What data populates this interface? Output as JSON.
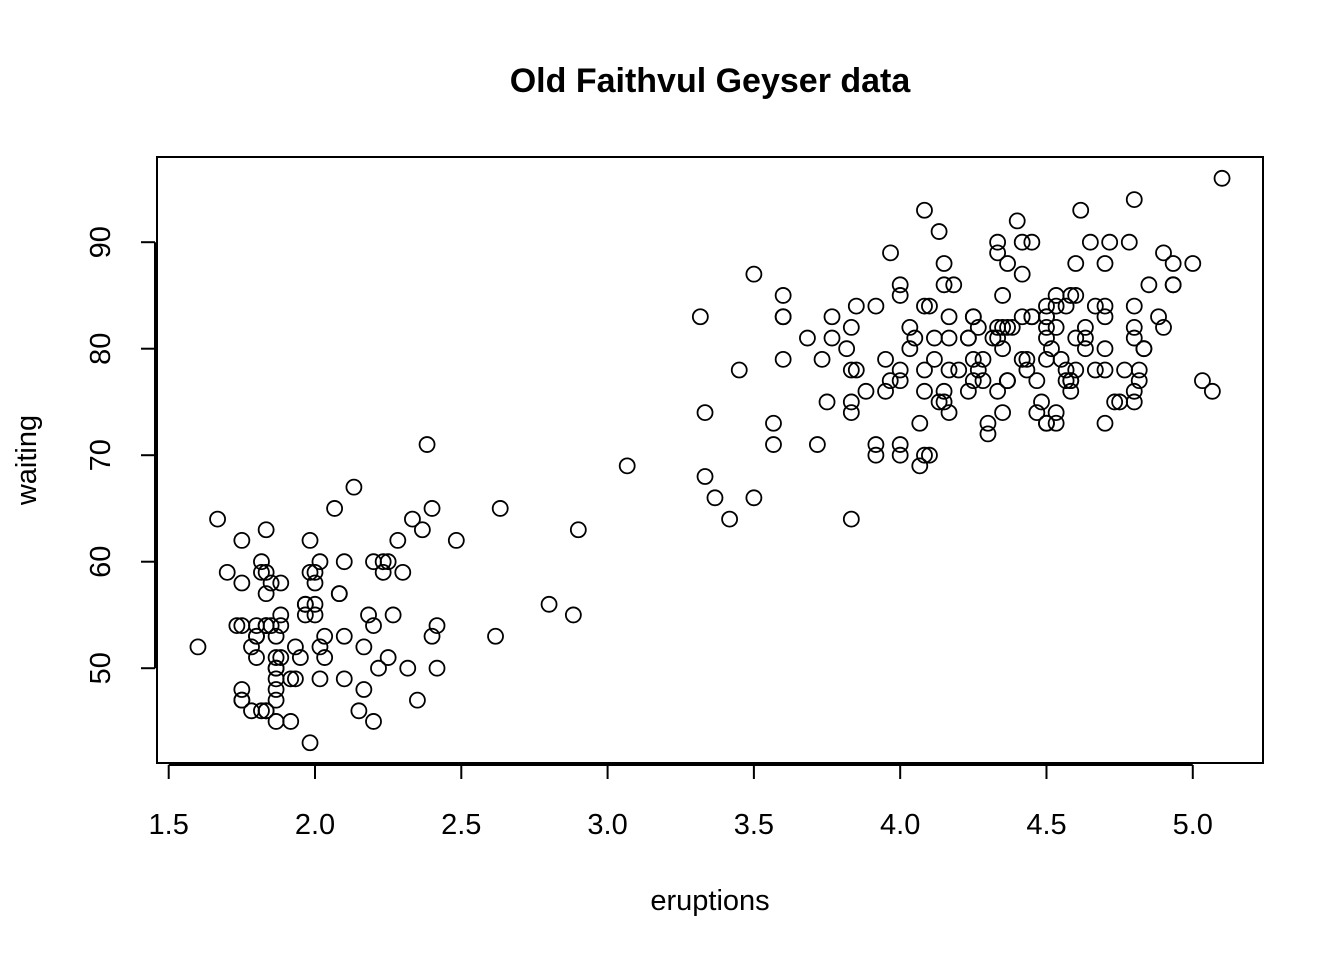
{
  "chart_data": {
    "type": "scatter",
    "title": "Old Faithvul Geyser data",
    "xlabel": "eruptions",
    "ylabel": "waiting",
    "xticks": [
      1.5,
      2.0,
      2.5,
      3.0,
      3.5,
      4.0,
      4.5,
      5.0
    ],
    "xtick_labels": [
      "1.5",
      "2.0",
      "2.5",
      "3.0",
      "3.5",
      "4.0",
      "4.5",
      "5.0"
    ],
    "yticks": [
      50,
      60,
      70,
      80,
      90
    ],
    "ytick_labels": [
      "50",
      "60",
      "70",
      "80",
      "90"
    ],
    "xlim": [
      1.46,
      5.24
    ],
    "ylim": [
      41.1,
      98.0
    ],
    "grid": false,
    "legend": "none",
    "marker": "open-circle",
    "color": "#000000",
    "points": [
      [
        3.6,
        79
      ],
      [
        1.8,
        54
      ],
      [
        3.333,
        74
      ],
      [
        2.283,
        62
      ],
      [
        4.533,
        85
      ],
      [
        2.883,
        55
      ],
      [
        4.7,
        88
      ],
      [
        3.6,
        85
      ],
      [
        1.95,
        51
      ],
      [
        4.35,
        85
      ],
      [
        1.833,
        54
      ],
      [
        3.917,
        84
      ],
      [
        4.2,
        78
      ],
      [
        1.75,
        47
      ],
      [
        4.7,
        83
      ],
      [
        2.167,
        52
      ],
      [
        1.75,
        62
      ],
      [
        4.8,
        84
      ],
      [
        1.6,
        52
      ],
      [
        4.25,
        79
      ],
      [
        1.8,
        51
      ],
      [
        1.75,
        47
      ],
      [
        3.45,
        78
      ],
      [
        3.067,
        69
      ],
      [
        4.533,
        74
      ],
      [
        3.6,
        83
      ],
      [
        1.967,
        55
      ],
      [
        4.083,
        76
      ],
      [
        3.85,
        78
      ],
      [
        4.433,
        79
      ],
      [
        4.3,
        73
      ],
      [
        4.467,
        77
      ],
      [
        3.367,
        66
      ],
      [
        4.033,
        80
      ],
      [
        3.833,
        74
      ],
      [
        2.017,
        52
      ],
      [
        1.867,
        48
      ],
      [
        4.833,
        80
      ],
      [
        1.833,
        59
      ],
      [
        4.783,
        90
      ],
      [
        4.35,
        80
      ],
      [
        1.883,
        58
      ],
      [
        4.567,
        84
      ],
      [
        1.75,
        58
      ],
      [
        4.533,
        73
      ],
      [
        3.317,
        83
      ],
      [
        3.833,
        64
      ],
      [
        2.1,
        53
      ],
      [
        4.633,
        82
      ],
      [
        2.0,
        59
      ],
      [
        4.8,
        75
      ],
      [
        4.716,
        90
      ],
      [
        1.833,
        54
      ],
      [
        4.833,
        80
      ],
      [
        1.733,
        54
      ],
      [
        4.883,
        83
      ],
      [
        3.717,
        71
      ],
      [
        1.667,
        64
      ],
      [
        4.567,
        77
      ],
      [
        4.317,
        81
      ],
      [
        2.233,
        59
      ],
      [
        4.5,
        84
      ],
      [
        1.75,
        48
      ],
      [
        4.8,
        82
      ],
      [
        1.817,
        60
      ],
      [
        4.4,
        92
      ],
      [
        4.167,
        78
      ],
      [
        4.7,
        78
      ],
      [
        2.067,
        65
      ],
      [
        4.7,
        73
      ],
      [
        4.033,
        82
      ],
      [
        1.967,
        56
      ],
      [
        4.5,
        79
      ],
      [
        4.0,
        71
      ],
      [
        1.983,
        62
      ],
      [
        5.067,
        76
      ],
      [
        2.017,
        60
      ],
      [
        4.567,
        78
      ],
      [
        3.883,
        76
      ],
      [
        3.6,
        83
      ],
      [
        4.133,
        75
      ],
      [
        4.333,
        82
      ],
      [
        4.1,
        70
      ],
      [
        2.633,
        65
      ],
      [
        4.067,
        73
      ],
      [
        4.933,
        88
      ],
      [
        3.95,
        76
      ],
      [
        4.517,
        80
      ],
      [
        2.167,
        48
      ],
      [
        4.0,
        86
      ],
      [
        2.2,
        60
      ],
      [
        4.333,
        90
      ],
      [
        1.867,
        50
      ],
      [
        4.817,
        78
      ],
      [
        1.833,
        63
      ],
      [
        4.3,
        72
      ],
      [
        4.667,
        84
      ],
      [
        3.75,
        75
      ],
      [
        1.867,
        51
      ],
      [
        4.9,
        82
      ],
      [
        2.483,
        62
      ],
      [
        4.367,
        88
      ],
      [
        2.1,
        49
      ],
      [
        4.5,
        83
      ],
      [
        4.05,
        81
      ],
      [
        1.867,
        47
      ],
      [
        4.7,
        84
      ],
      [
        1.783,
        52
      ],
      [
        4.85,
        86
      ],
      [
        3.683,
        81
      ],
      [
        4.733,
        75
      ],
      [
        2.3,
        59
      ],
      [
        4.9,
        89
      ],
      [
        4.417,
        79
      ],
      [
        1.7,
        59
      ],
      [
        4.633,
        81
      ],
      [
        2.317,
        50
      ],
      [
        4.6,
        85
      ],
      [
        1.817,
        59
      ],
      [
        4.417,
        87
      ],
      [
        2.617,
        53
      ],
      [
        4.067,
        69
      ],
      [
        4.25,
        77
      ],
      [
        1.967,
        56
      ],
      [
        4.6,
        88
      ],
      [
        3.767,
        81
      ],
      [
        1.917,
        45
      ],
      [
        4.5,
        82
      ],
      [
        2.267,
        55
      ],
      [
        4.65,
        90
      ],
      [
        1.867,
        45
      ],
      [
        4.167,
        83
      ],
      [
        2.8,
        56
      ],
      [
        4.333,
        89
      ],
      [
        1.833,
        46
      ],
      [
        4.383,
        82
      ],
      [
        1.883,
        51
      ],
      [
        4.933,
        86
      ],
      [
        2.033,
        53
      ],
      [
        3.733,
        79
      ],
      [
        4.233,
        81
      ],
      [
        2.233,
        60
      ],
      [
        4.533,
        82
      ],
      [
        4.817,
        77
      ],
      [
        4.333,
        76
      ],
      [
        1.983,
        59
      ],
      [
        4.633,
        80
      ],
      [
        2.017,
        49
      ],
      [
        5.1,
        96
      ],
      [
        1.8,
        53
      ],
      [
        5.033,
        77
      ],
      [
        4.0,
        77
      ],
      [
        2.4,
        65
      ],
      [
        4.6,
        81
      ],
      [
        3.567,
        71
      ],
      [
        4.0,
        70
      ],
      [
        4.5,
        81
      ],
      [
        4.083,
        93
      ],
      [
        1.8,
        53
      ],
      [
        3.967,
        89
      ],
      [
        2.2,
        45
      ],
      [
        4.15,
        86
      ],
      [
        2.0,
        58
      ],
      [
        3.833,
        78
      ],
      [
        3.5,
        66
      ],
      [
        4.583,
        76
      ],
      [
        2.367,
        63
      ],
      [
        5.0,
        88
      ],
      [
        1.933,
        52
      ],
      [
        4.617,
        93
      ],
      [
        1.917,
        49
      ],
      [
        2.083,
        57
      ],
      [
        4.583,
        77
      ],
      [
        3.333,
        68
      ],
      [
        4.167,
        81
      ],
      [
        4.333,
        81
      ],
      [
        4.5,
        73
      ],
      [
        2.417,
        50
      ],
      [
        4.0,
        85
      ],
      [
        4.167,
        74
      ],
      [
        1.883,
        55
      ],
      [
        4.583,
        77
      ],
      [
        4.25,
        83
      ],
      [
        3.767,
        83
      ],
      [
        2.033,
        51
      ],
      [
        4.433,
        78
      ],
      [
        4.083,
        84
      ],
      [
        1.833,
        46
      ],
      [
        4.417,
        83
      ],
      [
        2.183,
        55
      ],
      [
        4.8,
        81
      ],
      [
        1.833,
        57
      ],
      [
        4.8,
        76
      ],
      [
        4.1,
        84
      ],
      [
        3.966,
        77
      ],
      [
        4.233,
        81
      ],
      [
        3.5,
        87
      ],
      [
        4.366,
        77
      ],
      [
        2.25,
        51
      ],
      [
        4.667,
        78
      ],
      [
        2.1,
        60
      ],
      [
        4.35,
        82
      ],
      [
        4.133,
        91
      ],
      [
        1.867,
        53
      ],
      [
        4.6,
        78
      ],
      [
        1.783,
        46
      ],
      [
        4.367,
        77
      ],
      [
        3.85,
        84
      ],
      [
        1.933,
        49
      ],
      [
        4.5,
        83
      ],
      [
        2.383,
        71
      ],
      [
        4.7,
        80
      ],
      [
        1.867,
        49
      ],
      [
        3.833,
        75
      ],
      [
        3.417,
        64
      ],
      [
        4.233,
        76
      ],
      [
        2.4,
        53
      ],
      [
        4.8,
        94
      ],
      [
        2.0,
        55
      ],
      [
        4.15,
        76
      ],
      [
        1.867,
        50
      ],
      [
        4.267,
        82
      ],
      [
        1.75,
        54
      ],
      [
        4.483,
        75
      ],
      [
        4.0,
        78
      ],
      [
        4.117,
        79
      ],
      [
        4.083,
        78
      ],
      [
        4.267,
        78
      ],
      [
        3.917,
        70
      ],
      [
        4.55,
        79
      ],
      [
        4.083,
        70
      ],
      [
        2.417,
        54
      ],
      [
        4.183,
        86
      ],
      [
        2.217,
        50
      ],
      [
        4.45,
        90
      ],
      [
        1.883,
        54
      ],
      [
        1.85,
        54
      ],
      [
        4.283,
        77
      ],
      [
        3.95,
        79
      ],
      [
        2.333,
        64
      ],
      [
        4.15,
        75
      ],
      [
        2.35,
        47
      ],
      [
        4.933,
        86
      ],
      [
        2.9,
        63
      ],
      [
        4.583,
        85
      ],
      [
        3.833,
        82
      ],
      [
        2.083,
        57
      ],
      [
        4.367,
        82
      ],
      [
        2.133,
        67
      ],
      [
        4.35,
        74
      ],
      [
        2.2,
        54
      ],
      [
        4.45,
        83
      ],
      [
        3.567,
        73
      ],
      [
        4.5,
        73
      ],
      [
        4.15,
        88
      ],
      [
        3.817,
        80
      ],
      [
        3.917,
        71
      ],
      [
        4.45,
        83
      ],
      [
        2.0,
        56
      ],
      [
        4.283,
        79
      ],
      [
        4.767,
        78
      ],
      [
        4.533,
        84
      ],
      [
        1.85,
        58
      ],
      [
        4.25,
        83
      ],
      [
        1.983,
        43
      ],
      [
        2.25,
        60
      ],
      [
        4.75,
        75
      ],
      [
        4.117,
        81
      ],
      [
        2.15,
        46
      ],
      [
        4.417,
        90
      ],
      [
        1.817,
        46
      ],
      [
        4.467,
        74
      ]
    ]
  }
}
